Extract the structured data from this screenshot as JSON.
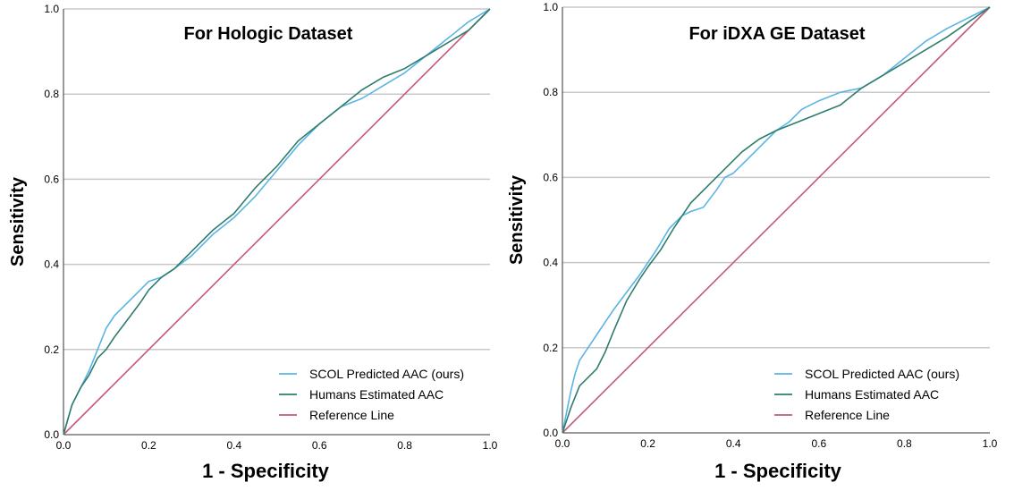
{
  "chart_data": [
    {
      "type": "line",
      "title": "For Hologic Dataset",
      "xlabel": "1 - Specificity",
      "ylabel": "Sensitivity",
      "xlim": [
        0,
        1
      ],
      "ylim": [
        0,
        1
      ],
      "x_ticks": [
        "0.0",
        "0.2",
        "0.4",
        "0.6",
        "0.8",
        "1.0"
      ],
      "y_ticks": [
        "0.0",
        "0.2",
        "0.4",
        "0.6",
        "0.8",
        "1.0"
      ],
      "grid": "horizontal",
      "legend_position": "bottom-right",
      "series": [
        {
          "name": "SCOL Predicted AAC (ours)",
          "color": "#5AB4E5",
          "x": [
            0,
            0.02,
            0.04,
            0.06,
            0.08,
            0.1,
            0.12,
            0.15,
            0.18,
            0.2,
            0.23,
            0.26,
            0.3,
            0.35,
            0.4,
            0.45,
            0.5,
            0.55,
            0.6,
            0.65,
            0.7,
            0.75,
            0.8,
            0.85,
            0.9,
            0.95,
            1.0
          ],
          "y": [
            0,
            0.07,
            0.11,
            0.15,
            0.2,
            0.25,
            0.28,
            0.31,
            0.34,
            0.36,
            0.37,
            0.39,
            0.42,
            0.47,
            0.51,
            0.56,
            0.62,
            0.68,
            0.73,
            0.77,
            0.79,
            0.82,
            0.85,
            0.89,
            0.93,
            0.97,
            1.0
          ]
        },
        {
          "name": "Humans Estimated AAC",
          "color": "#2E7D6E",
          "x": [
            0,
            0.02,
            0.04,
            0.06,
            0.08,
            0.1,
            0.12,
            0.15,
            0.18,
            0.2,
            0.23,
            0.26,
            0.3,
            0.35,
            0.4,
            0.45,
            0.5,
            0.55,
            0.6,
            0.65,
            0.7,
            0.75,
            0.8,
            0.85,
            0.9,
            0.95,
            1.0
          ],
          "y": [
            0,
            0.07,
            0.11,
            0.14,
            0.18,
            0.2,
            0.23,
            0.27,
            0.31,
            0.34,
            0.37,
            0.39,
            0.43,
            0.48,
            0.52,
            0.58,
            0.63,
            0.69,
            0.73,
            0.77,
            0.81,
            0.84,
            0.86,
            0.89,
            0.92,
            0.95,
            1.0
          ]
        },
        {
          "name": "Reference Line",
          "color": "#C4587A",
          "x": [
            0,
            1
          ],
          "y": [
            0,
            1
          ]
        }
      ]
    },
    {
      "type": "line",
      "title": "For iDXA GE Dataset",
      "xlabel": "1 - Specificity",
      "ylabel": "Sensitivity",
      "xlim": [
        0,
        1
      ],
      "ylim": [
        0,
        1
      ],
      "x_ticks": [
        "0.0",
        "0.2",
        "0.4",
        "0.6",
        "0.8",
        "1.0"
      ],
      "y_ticks": [
        "0.0",
        "0.2",
        "0.4",
        "0.6",
        "0.8",
        "1.0"
      ],
      "grid": "horizontal",
      "legend_position": "bottom-right",
      "series": [
        {
          "name": "SCOL Predicted AAC (ours)",
          "color": "#5AB4E5",
          "x": [
            0,
            0.01,
            0.02,
            0.03,
            0.04,
            0.06,
            0.08,
            0.1,
            0.12,
            0.15,
            0.18,
            0.2,
            0.22,
            0.25,
            0.28,
            0.3,
            0.33,
            0.36,
            0.38,
            0.4,
            0.43,
            0.46,
            0.5,
            0.53,
            0.56,
            0.6,
            0.65,
            0.7,
            0.75,
            0.8,
            0.85,
            0.9,
            1.0
          ],
          "y": [
            0,
            0.05,
            0.1,
            0.14,
            0.17,
            0.2,
            0.23,
            0.26,
            0.29,
            0.33,
            0.37,
            0.4,
            0.43,
            0.48,
            0.51,
            0.52,
            0.53,
            0.57,
            0.6,
            0.61,
            0.64,
            0.67,
            0.71,
            0.73,
            0.76,
            0.78,
            0.8,
            0.81,
            0.84,
            0.88,
            0.92,
            0.95,
            1.0
          ]
        },
        {
          "name": "Humans Estimated AAC",
          "color": "#2E7D6E",
          "x": [
            0,
            0.02,
            0.04,
            0.06,
            0.08,
            0.1,
            0.12,
            0.15,
            0.18,
            0.2,
            0.23,
            0.26,
            0.3,
            0.34,
            0.38,
            0.42,
            0.46,
            0.5,
            0.55,
            0.6,
            0.65,
            0.7,
            0.8,
            0.9,
            1.0
          ],
          "y": [
            0,
            0.06,
            0.11,
            0.13,
            0.15,
            0.19,
            0.24,
            0.31,
            0.36,
            0.39,
            0.43,
            0.48,
            0.54,
            0.58,
            0.62,
            0.66,
            0.69,
            0.71,
            0.73,
            0.75,
            0.77,
            0.81,
            0.87,
            0.93,
            1.0
          ]
        },
        {
          "name": "Reference Line",
          "color": "#C4587A",
          "x": [
            0,
            1
          ],
          "y": [
            0,
            1
          ]
        }
      ]
    }
  ]
}
